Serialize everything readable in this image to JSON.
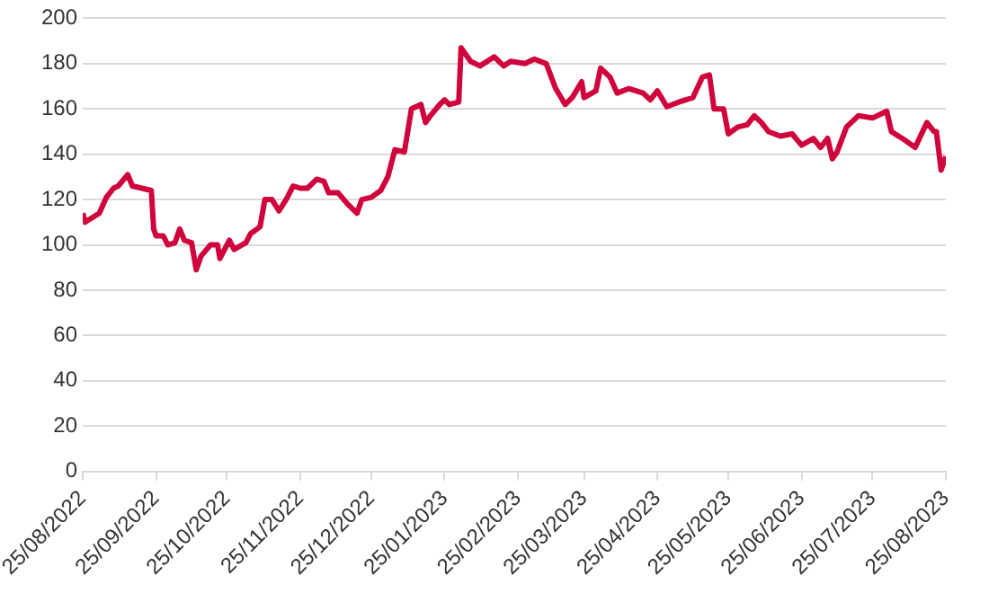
{
  "chart_data": {
    "type": "line",
    "color": "#d0043c",
    "grid": "y",
    "legend": false,
    "marker": "none",
    "line_style": "solid",
    "x": [
      "2022-08-25",
      "2022-08-26",
      "2022-09-01",
      "2022-09-04",
      "2022-09-07",
      "2022-09-09",
      "2022-09-13",
      "2022-09-15",
      "2022-09-19",
      "2022-09-23",
      "2022-09-24",
      "2022-09-25",
      "2022-09-28",
      "2022-09-30",
      "2022-10-03",
      "2022-10-05",
      "2022-10-07",
      "2022-10-10",
      "2022-10-12",
      "2022-10-14",
      "2022-10-18",
      "2022-10-21",
      "2022-10-22",
      "2022-10-26",
      "2022-10-28",
      "2022-11-02",
      "2022-11-04",
      "2022-11-08",
      "2022-11-10",
      "2022-11-13",
      "2022-11-16",
      "2022-11-19",
      "2022-11-22",
      "2022-11-25",
      "2022-11-28",
      "2022-12-02",
      "2022-12-05",
      "2022-12-07",
      "2022-12-11",
      "2022-12-15",
      "2022-12-19",
      "2022-12-21",
      "2022-12-25",
      "2022-12-29",
      "2023-01-01",
      "2023-01-04",
      "2023-01-08",
      "2023-01-11",
      "2023-01-15",
      "2023-01-17",
      "2023-01-19",
      "2023-01-23",
      "2023-01-25",
      "2023-01-27",
      "2023-01-31",
      "2023-02-01",
      "2023-02-05",
      "2023-02-09",
      "2023-02-15",
      "2023-02-19",
      "2023-02-22",
      "2023-02-28",
      "2023-03-04",
      "2023-03-09",
      "2023-03-13",
      "2023-03-17",
      "2023-03-20",
      "2023-03-24",
      "2023-03-25",
      "2023-03-30",
      "2023-04-01",
      "2023-04-05",
      "2023-04-08",
      "2023-04-13",
      "2023-04-19",
      "2023-04-22",
      "2023-04-25",
      "2023-04-29",
      "2023-05-04",
      "2023-05-10",
      "2023-05-14",
      "2023-05-17",
      "2023-05-19",
      "2023-05-23",
      "2023-05-25",
      "2023-05-29",
      "2023-06-02",
      "2023-06-05",
      "2023-06-08",
      "2023-06-11",
      "2023-06-16",
      "2023-06-21",
      "2023-06-25",
      "2023-06-30",
      "2023-07-03",
      "2023-07-06",
      "2023-07-08",
      "2023-07-10",
      "2023-07-14",
      "2023-07-19",
      "2023-07-25",
      "2023-07-31",
      "2023-08-02",
      "2023-08-08",
      "2023-08-12",
      "2023-08-17",
      "2023-08-20",
      "2023-08-21",
      "2023-08-23",
      "2023-08-25"
    ],
    "values": [
      114,
      110,
      114,
      121,
      125,
      126,
      131,
      126,
      125,
      124,
      107,
      104,
      104,
      100,
      101,
      107,
      102,
      101,
      89,
      95,
      100,
      100,
      94,
      102,
      98,
      101,
      105,
      108,
      120,
      120,
      115,
      120,
      126,
      125,
      125,
      129,
      128,
      123,
      123,
      118,
      114,
      120,
      121,
      124,
      130,
      142,
      141,
      160,
      162,
      154,
      157,
      162,
      164,
      162,
      163,
      187,
      181,
      179,
      183,
      179,
      181,
      180,
      182,
      180,
      169,
      162,
      165,
      172,
      165,
      168,
      178,
      174,
      167,
      169,
      167,
      164,
      168,
      161,
      163,
      165,
      174,
      175,
      160,
      160,
      149,
      152,
      153,
      157,
      154,
      150,
      148,
      149,
      144,
      147,
      143,
      147,
      138,
      141,
      152,
      157,
      156,
      159,
      150,
      146,
      143,
      154,
      150,
      150,
      133,
      139
    ],
    "xlim": [
      "2022-08-25",
      "2023-08-25"
    ],
    "xticks": [
      {
        "value": "2022-08-25",
        "label": "25/08/2022"
      },
      {
        "value": "2022-09-25",
        "label": "25/09/2022"
      },
      {
        "value": "2022-10-25",
        "label": "25/10/2022"
      },
      {
        "value": "2022-11-25",
        "label": "25/11/2022"
      },
      {
        "value": "2022-12-25",
        "label": "25/12/2022"
      },
      {
        "value": "2023-01-25",
        "label": "25/01/2023"
      },
      {
        "value": "2023-02-25",
        "label": "25/02/2023"
      },
      {
        "value": "2023-03-25",
        "label": "25/03/2023"
      },
      {
        "value": "2023-04-25",
        "label": "25/04/2023"
      },
      {
        "value": "2023-05-25",
        "label": "25/05/2023"
      },
      {
        "value": "2023-06-25",
        "label": "25/06/2023"
      },
      {
        "value": "2023-07-25",
        "label": "25/07/2023"
      },
      {
        "value": "2023-08-25",
        "label": "25/08/2023"
      }
    ],
    "ylim": [
      0,
      200
    ],
    "yticks": [
      0,
      20,
      40,
      60,
      80,
      100,
      120,
      140,
      160,
      180,
      200
    ]
  }
}
